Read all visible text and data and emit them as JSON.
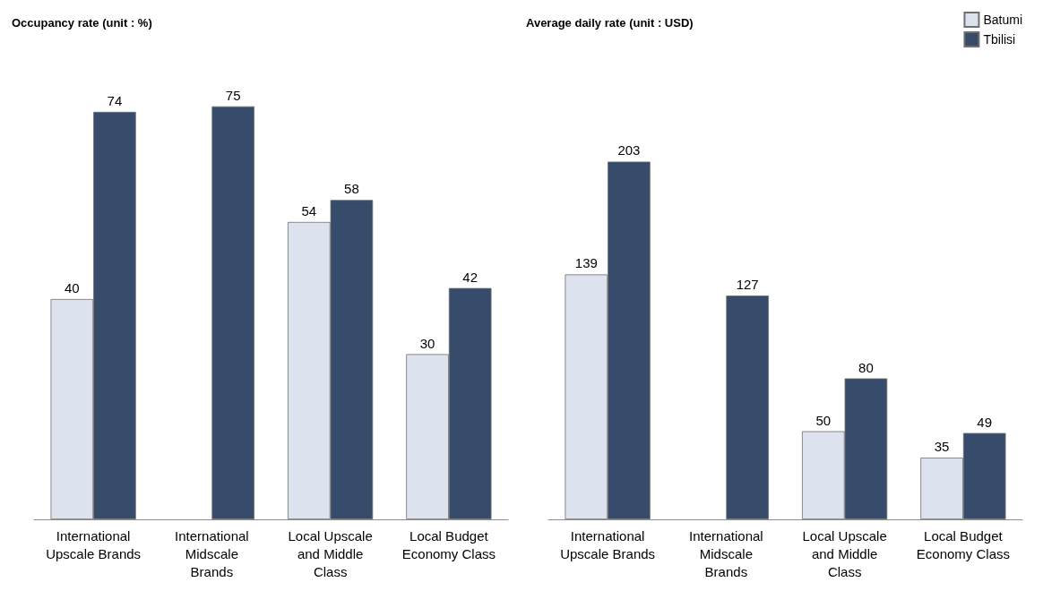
{
  "chart_data": [
    {
      "type": "bar",
      "title": "Occupancy rate (unit : %)",
      "categories": [
        "International Upscale Brands",
        "International Midscale Brands",
        "Local Upscale and Middle Class",
        "Local Budget Economy Class"
      ],
      "series": [
        {
          "color": "#dde3ee",
          "values": [
            40,
            null,
            54,
            30
          ]
        },
        {
          "color": "#374b6b",
          "values": [
            74,
            75,
            58,
            42
          ]
        }
      ],
      "data_labels": true,
      "legend": false
    },
    {
      "type": "bar",
      "title": "Average daily rate (unit : USD)",
      "categories": [
        "International Upscale Brands",
        "International Midscale Brands",
        "Local Upscale and Middle Class",
        "Local Budget Economy Class"
      ],
      "series": [
        {
          "name": "Batumi",
          "color": "#dde3ee",
          "values": [
            139,
            null,
            50,
            35
          ]
        },
        {
          "name": "Tbilisi",
          "color": "#374b6b",
          "values": [
            203,
            127,
            80,
            49
          ]
        }
      ],
      "data_labels": true,
      "legend": "top right"
    }
  ]
}
